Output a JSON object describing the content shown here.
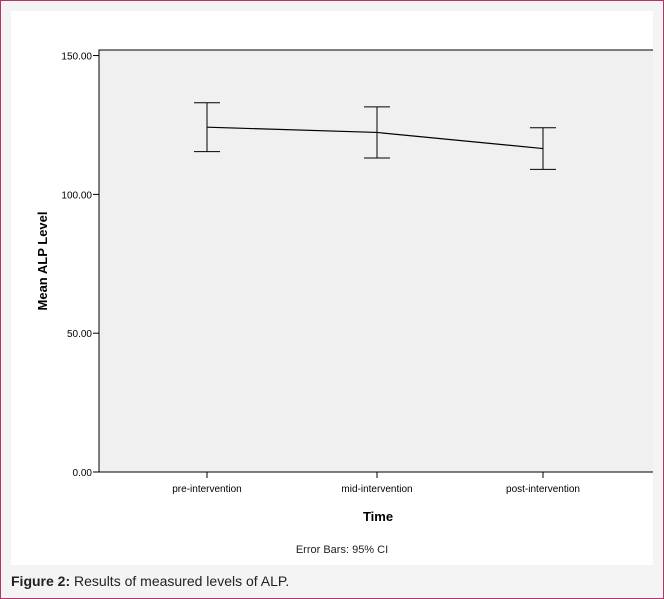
{
  "chart_data": {
    "type": "line",
    "title": "",
    "xlabel": "Time",
    "ylabel": "Mean ALP Level",
    "categories": [
      "pre-intervention",
      "mid-intervention",
      "post-intervention"
    ],
    "series": [
      {
        "values": [
          124.2,
          122.3,
          116.5
        ],
        "ci_lower": [
          115.4,
          113.1,
          109.0
        ],
        "ci_upper": [
          133.0,
          131.5,
          124.0
        ]
      }
    ],
    "yticks": [
      {
        "value": 0,
        "label": "0.00"
      },
      {
        "value": 50,
        "label": "50.00"
      },
      {
        "value": 100,
        "label": "100.00"
      },
      {
        "value": 150,
        "label": "150.00"
      }
    ],
    "ylim": [
      0,
      150
    ],
    "grid": false,
    "footnote": "Error Bars: 95% CI",
    "colors": {
      "plot_background": "#f0f0f0",
      "line": "#000000",
      "frame_border": "#b5336b"
    }
  },
  "caption": {
    "label": "Figure 2:",
    "text": " Results of measured levels of ALP."
  }
}
